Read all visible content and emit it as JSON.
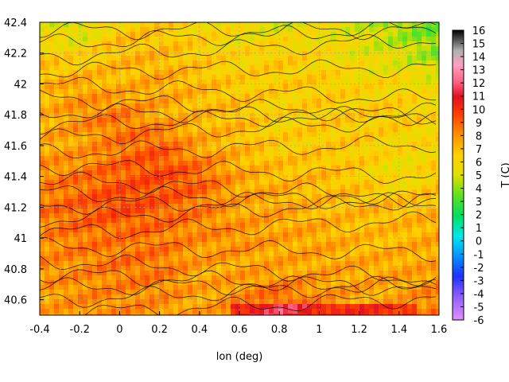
{
  "chart_data": {
    "type": "heatmap",
    "title": "",
    "xlabel": "lon (deg)",
    "ylabel": "",
    "colorbar_label": "T (C)",
    "xlim": [
      -0.4,
      1.6
    ],
    "ylim": [
      40.5,
      42.4
    ],
    "x_ticks": [
      "-0.4",
      "-0.2",
      "0",
      "0.2",
      "0.4",
      "0.6",
      "0.8",
      "1",
      "1.2",
      "1.4",
      "1.6"
    ],
    "y_ticks": [
      "40.6",
      "40.8",
      "41",
      "41.2",
      "41.4",
      "41.6",
      "41.8",
      "42",
      "42.2",
      "42.4"
    ],
    "colorbar_range": [
      -6,
      16
    ],
    "colorbar_ticks": [
      "-6",
      "-5",
      "-4",
      "-3",
      "-2",
      "-1",
      "0",
      "1",
      "2",
      "3",
      "4",
      "5",
      "6",
      "7",
      "8",
      "9",
      "10",
      "11",
      "12",
      "13",
      "14",
      "15",
      "16"
    ],
    "grid": true,
    "contour_lines": true,
    "approx_field": {
      "description_values_C": "coarse sampled temperature grid, rows from 42.4 to 40.5, cols from -0.4 to 1.6",
      "lon": [
        -0.4,
        -0.2,
        0.0,
        0.2,
        0.4,
        0.6,
        0.8,
        1.0,
        1.2,
        1.4,
        1.6
      ],
      "lat": [
        42.4,
        42.2,
        42.0,
        41.8,
        41.6,
        41.4,
        41.2,
        41.0,
        40.8,
        40.6
      ],
      "T": [
        [
          5.5,
          4.5,
          6.5,
          6.5,
          6.0,
          5.5,
          5.0,
          5.5,
          5.0,
          4.0,
          3.5
        ],
        [
          6.5,
          6.0,
          7.0,
          7.0,
          6.5,
          6.0,
          6.5,
          6.0,
          5.5,
          5.0,
          4.0
        ],
        [
          7.0,
          7.5,
          7.0,
          7.5,
          7.0,
          6.5,
          6.5,
          6.5,
          6.0,
          6.0,
          5.5
        ],
        [
          7.0,
          8.0,
          8.5,
          7.5,
          7.0,
          7.0,
          6.0,
          6.5,
          6.5,
          6.5,
          6.0
        ],
        [
          7.5,
          7.5,
          8.5,
          9.0,
          7.5,
          7.0,
          6.5,
          6.5,
          6.5,
          6.0,
          6.0
        ],
        [
          8.0,
          8.5,
          9.0,
          9.5,
          9.0,
          7.5,
          7.0,
          7.0,
          6.5,
          5.5,
          6.5
        ],
        [
          8.5,
          9.0,
          9.5,
          9.0,
          8.5,
          7.5,
          7.5,
          7.0,
          7.0,
          7.0,
          7.0
        ],
        [
          8.0,
          8.5,
          8.5,
          8.5,
          8.0,
          8.0,
          7.5,
          7.5,
          7.0,
          7.0,
          7.5
        ],
        [
          8.0,
          8.0,
          8.5,
          8.5,
          7.5,
          7.5,
          7.5,
          7.5,
          7.5,
          7.5,
          7.5
        ],
        [
          7.5,
          8.0,
          8.0,
          8.0,
          7.5,
          8.0,
          9.0,
          8.0,
          7.5,
          7.5,
          8.5
        ]
      ]
    }
  }
}
